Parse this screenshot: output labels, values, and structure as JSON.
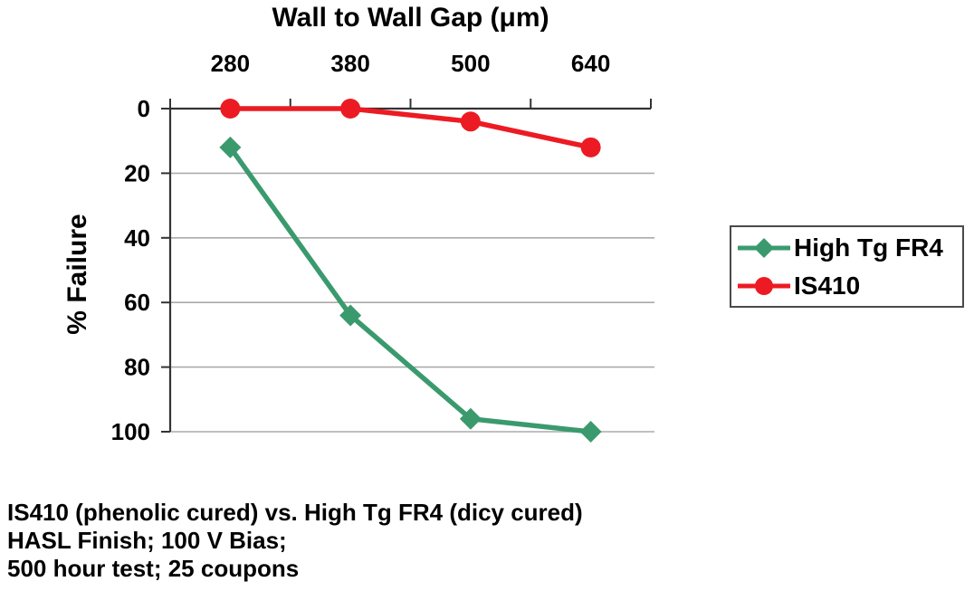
{
  "figure": {
    "title": "Wall to Wall Gap (μm)",
    "y_axis_label": "% Failure"
  },
  "caption": {
    "line1": "IS410 (phenolic cured) vs. High Tg FR4 (dicy cured)",
    "line2": "HASL Finish; 100 V Bias;",
    "line3": "500 hour test; 25 coupons"
  },
  "colors": {
    "green": "#3A9A6E",
    "red": "#EC1B23",
    "axis": "#333333",
    "grid": "#ABABAB",
    "text": "#000000",
    "legend_border": "#4a4a4a"
  },
  "chart_data": {
    "type": "line",
    "title": "Wall to Wall Gap (μm)",
    "xlabel": "Wall to Wall Gap (μm)",
    "ylabel": "% Failure",
    "x_axis_position": "top",
    "y_axis_inverted": true,
    "grid": "horizontal-major",
    "legend_position": "right",
    "categories": [
      "280",
      "380",
      "500",
      "640"
    ],
    "y_ticks": [
      0,
      20,
      40,
      60,
      80,
      100
    ],
    "ylim": [
      0,
      100
    ],
    "series": [
      {
        "name": "High Tg FR4",
        "marker": "diamond",
        "color": "#3A9A6E",
        "values": [
          12,
          64,
          96,
          100
        ]
      },
      {
        "name": "IS410",
        "marker": "circle",
        "color": "#EC1B23",
        "values": [
          0,
          0,
          4,
          12
        ]
      }
    ]
  }
}
